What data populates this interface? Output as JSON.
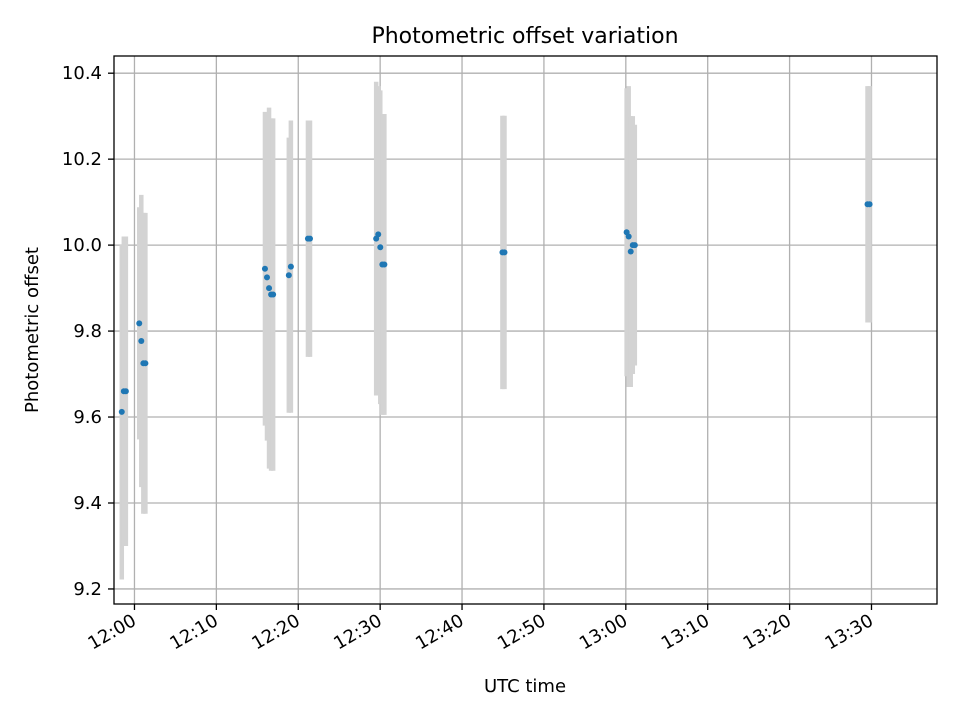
{
  "chart_data": {
    "type": "scatter",
    "title": "Photometric offset variation",
    "xlabel": "UTC time",
    "ylabel": "Photometric offset",
    "xlim": [
      "11:57:30",
      "13:38:00"
    ],
    "ylim": [
      9.165,
      10.44
    ],
    "grid": true,
    "legend": "none",
    "x_ticks": [
      "12:00",
      "12:10",
      "12:20",
      "12:30",
      "12:40",
      "12:50",
      "13:00",
      "13:10",
      "13:20",
      "13:30"
    ],
    "y_ticks": [
      "9.2",
      "9.4",
      "9.6",
      "9.8",
      "10.0",
      "10.2",
      "10.4"
    ],
    "series": [
      {
        "marker_color": "#1f77b4",
        "errorbar_color": "#d3d3d3",
        "points": [
          {
            "t": "11:58:27",
            "y": 9.612,
            "err": 0.39
          },
          {
            "t": "11:58:42",
            "y": 9.66,
            "err": 0.36
          },
          {
            "t": "11:58:57",
            "y": 9.66,
            "err": 0.36
          },
          {
            "t": "12:00:35",
            "y": 9.818,
            "err": 0.27
          },
          {
            "t": "12:00:50",
            "y": 9.777,
            "err": 0.34
          },
          {
            "t": "12:01:05",
            "y": 9.725,
            "err": 0.35
          },
          {
            "t": "12:01:20",
            "y": 9.725,
            "err": 0.35
          },
          {
            "t": "12:15:56",
            "y": 9.945,
            "err": 0.365
          },
          {
            "t": "12:16:11",
            "y": 9.925,
            "err": 0.38
          },
          {
            "t": "12:16:26",
            "y": 9.9,
            "err": 0.42
          },
          {
            "t": "12:16:41",
            "y": 9.885,
            "err": 0.41
          },
          {
            "t": "12:16:56",
            "y": 9.885,
            "err": 0.41
          },
          {
            "t": "12:18:51",
            "y": 9.93,
            "err": 0.32
          },
          {
            "t": "12:19:06",
            "y": 9.95,
            "err": 0.34
          },
          {
            "t": "12:21:11",
            "y": 10.015,
            "err": 0.275
          },
          {
            "t": "12:21:26",
            "y": 10.015,
            "err": 0.275
          },
          {
            "t": "12:29:31",
            "y": 10.015,
            "err": 0.365
          },
          {
            "t": "12:29:46",
            "y": 10.025,
            "err": 0.345
          },
          {
            "t": "12:30:01",
            "y": 9.995,
            "err": 0.365
          },
          {
            "t": "12:30:16",
            "y": 9.955,
            "err": 0.35
          },
          {
            "t": "12:30:31",
            "y": 9.955,
            "err": 0.35
          },
          {
            "t": "12:44:56",
            "y": 9.983,
            "err": 0.318
          },
          {
            "t": "12:45:11",
            "y": 9.983,
            "err": 0.318
          },
          {
            "t": "13:00:06",
            "y": 10.03,
            "err": 0.335
          },
          {
            "t": "13:00:21",
            "y": 10.02,
            "err": 0.35
          },
          {
            "t": "13:00:36",
            "y": 9.985,
            "err": 0.315
          },
          {
            "t": "13:00:51",
            "y": 10.0,
            "err": 0.3
          },
          {
            "t": "13:01:06",
            "y": 10.0,
            "err": 0.28
          },
          {
            "t": "13:29:31",
            "y": 10.095,
            "err": 0.275
          },
          {
            "t": "13:29:46",
            "y": 10.095,
            "err": 0.275
          }
        ]
      }
    ]
  }
}
